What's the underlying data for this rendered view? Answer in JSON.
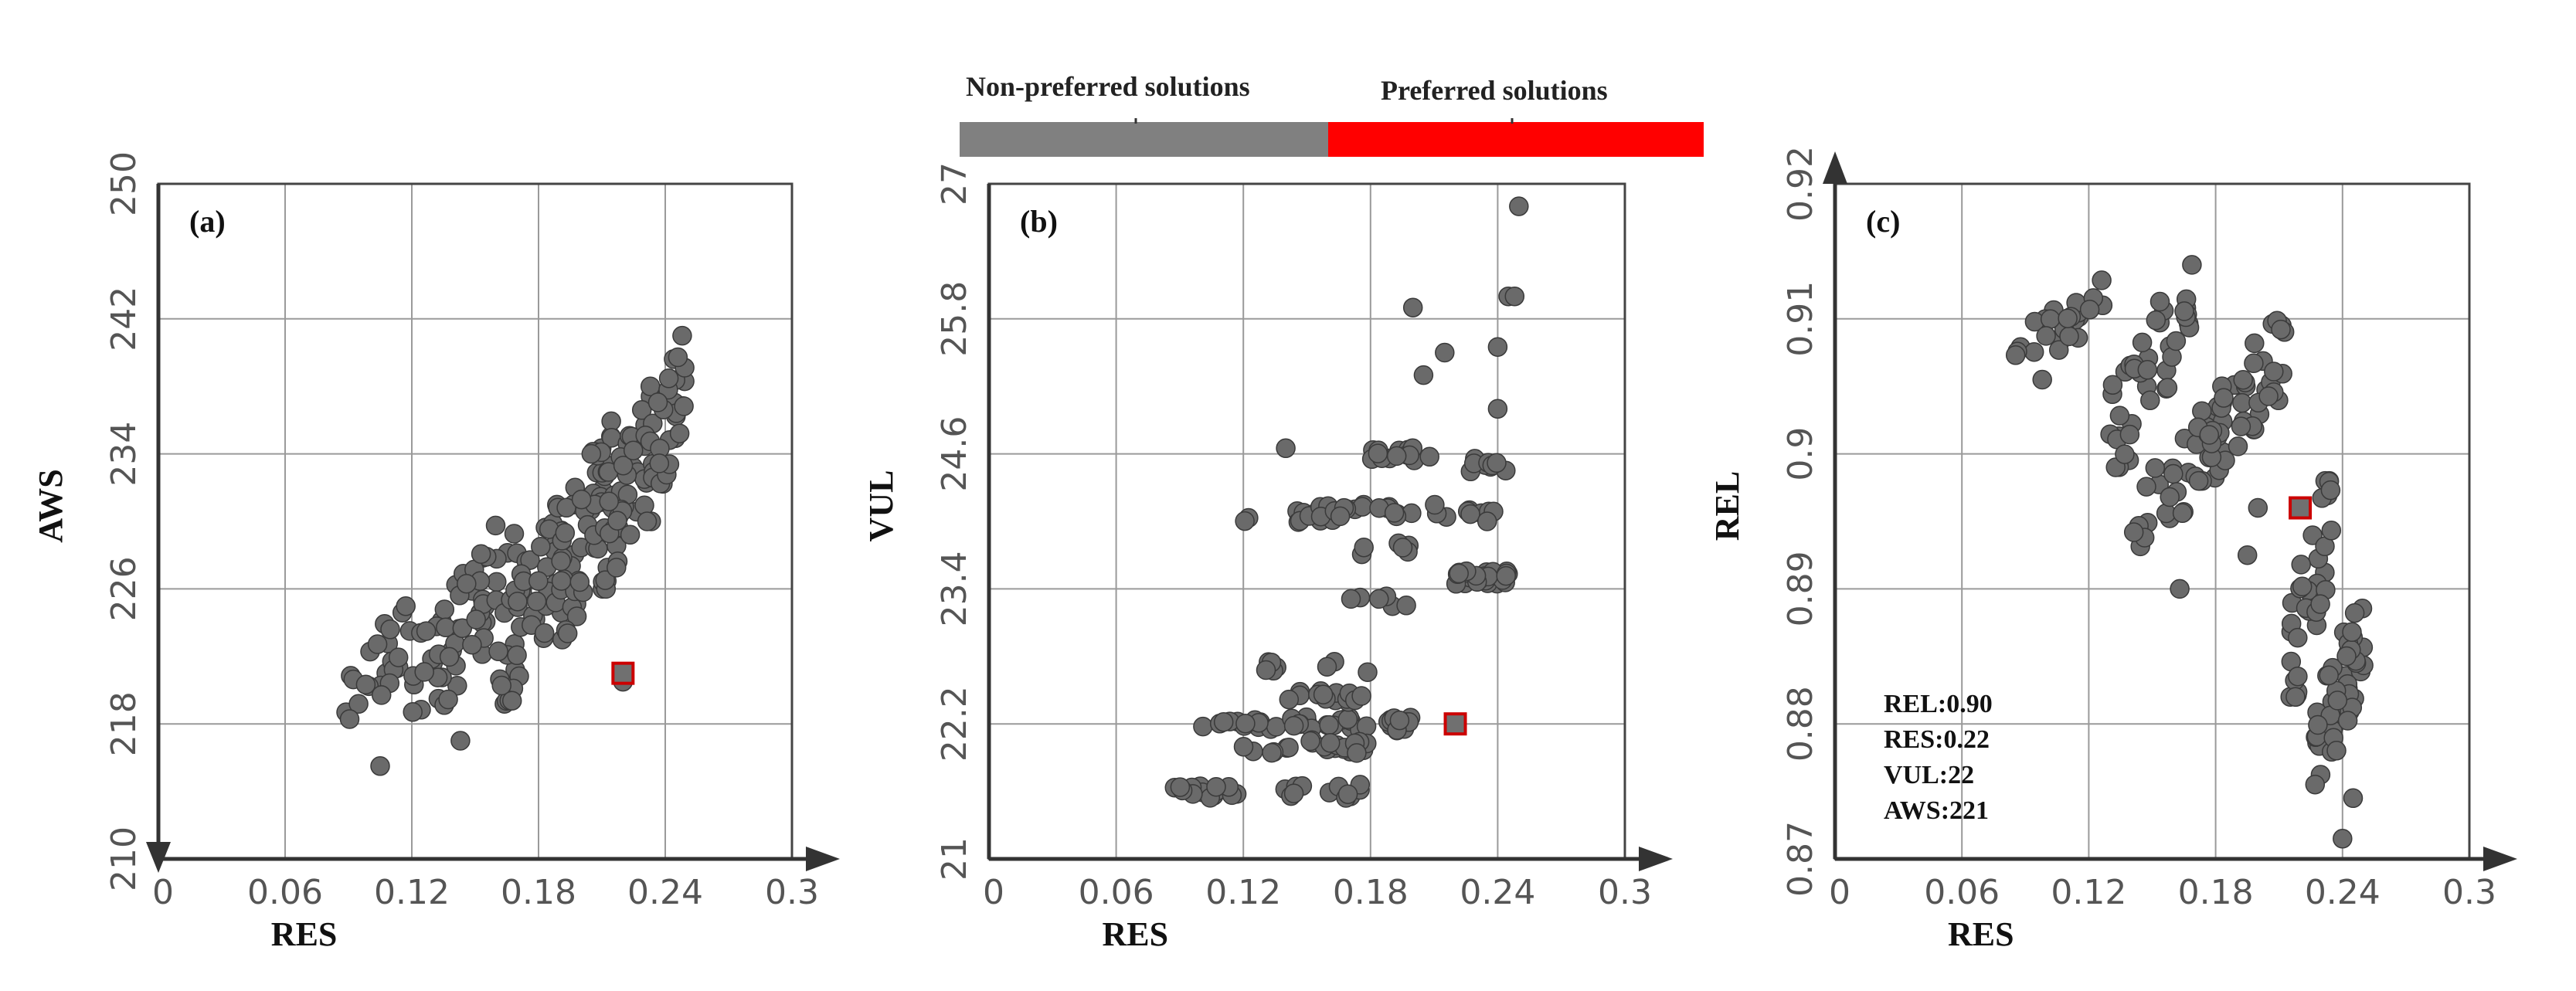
{
  "legend": {
    "items": [
      {
        "label": "Non-preferred solutions",
        "color": "#808080"
      },
      {
        "label": "Preferred solutions",
        "color": "#ff0000"
      }
    ]
  },
  "colors": {
    "point": "#6a6a6a",
    "point_edge": "#3a3a3a",
    "preferred_edge": "#cc0000"
  },
  "chart_data": [
    {
      "type": "scatter",
      "panel_label": "(a)",
      "xlabel": "RES",
      "ylabel": "AWS",
      "xlim": [
        0,
        0.3
      ],
      "ylim": [
        210,
        250
      ],
      "xticks": [
        "0",
        "0.06",
        "0.12",
        "0.18",
        "0.24",
        "0.3"
      ],
      "yticks": [
        "210",
        "218",
        "226",
        "234",
        "242",
        "250"
      ],
      "cloud": [
        {
          "x0": 0.085,
          "x1": 0.12,
          "y0": 217,
          "y1": 225,
          "n": 25
        },
        {
          "x0": 0.12,
          "x1": 0.17,
          "y0": 218,
          "y1": 230,
          "n": 55
        },
        {
          "x0": 0.16,
          "x1": 0.2,
          "y0": 219,
          "y1": 232,
          "n": 60
        },
        {
          "x0": 0.19,
          "x1": 0.215,
          "y0": 223,
          "y1": 236,
          "n": 40
        },
        {
          "x0": 0.21,
          "x1": 0.235,
          "y0": 226,
          "y1": 238,
          "n": 45
        },
        {
          "x0": 0.23,
          "x1": 0.25,
          "y0": 230,
          "y1": 241,
          "n": 30
        }
      ],
      "extra_points": [
        [
          0.105,
          215.5
        ],
        [
          0.143,
          217
        ],
        [
          0.205,
          234
        ],
        [
          0.22,
          220.5
        ],
        [
          0.248,
          241
        ]
      ],
      "preferred": {
        "RES": 0.22,
        "AWS": 221
      }
    },
    {
      "type": "scatter",
      "panel_label": "(b)",
      "xlabel": "RES",
      "ylabel": "VUL",
      "xlim": [
        0,
        0.3
      ],
      "ylim": [
        21,
        27
      ],
      "xticks": [
        "0",
        "0.06",
        "0.12",
        "0.18",
        "0.24",
        "0.3"
      ],
      "yticks": [
        "21",
        "22.2",
        "23.4",
        "24.6",
        "25.8",
        "27"
      ],
      "clusters": [
        {
          "x0": 0.085,
          "x1": 0.12,
          "y": 21.6,
          "n": 14
        },
        {
          "x0": 0.135,
          "x1": 0.18,
          "y": 21.6,
          "n": 12
        },
        {
          "x0": 0.1,
          "x1": 0.2,
          "y": 22.2,
          "n": 45
        },
        {
          "x0": 0.12,
          "x1": 0.18,
          "y": 22.0,
          "n": 25
        },
        {
          "x0": 0.14,
          "x1": 0.2,
          "y": 22.45,
          "n": 15
        },
        {
          "x0": 0.13,
          "x1": 0.185,
          "y": 22.7,
          "n": 8
        },
        {
          "x0": 0.17,
          "x1": 0.2,
          "y": 23.3,
          "n": 6
        },
        {
          "x0": 0.12,
          "x1": 0.17,
          "y": 24.05,
          "n": 10
        },
        {
          "x0": 0.15,
          "x1": 0.24,
          "y": 24.1,
          "n": 30
        },
        {
          "x0": 0.17,
          "x1": 0.2,
          "y": 23.75,
          "n": 6
        },
        {
          "x0": 0.18,
          "x1": 0.21,
          "y": 24.6,
          "n": 14
        },
        {
          "x0": 0.22,
          "x1": 0.245,
          "y": 23.5,
          "n": 30
        },
        {
          "x0": 0.225,
          "x1": 0.245,
          "y": 24.5,
          "n": 10
        }
      ],
      "extra_points": [
        [
          0.2,
          25.9
        ],
        [
          0.205,
          25.3
        ],
        [
          0.215,
          25.5
        ],
        [
          0.24,
          25.0
        ],
        [
          0.245,
          26.0
        ],
        [
          0.25,
          26.8
        ],
        [
          0.248,
          26.0
        ],
        [
          0.24,
          25.55
        ],
        [
          0.235,
          24.0
        ],
        [
          0.14,
          24.65
        ]
      ],
      "preferred": {
        "RES": 0.22,
        "VUL": 22.2
      }
    },
    {
      "type": "scatter",
      "panel_label": "(c)",
      "xlabel": "RES",
      "ylabel": "REL",
      "xlim": [
        0,
        0.3
      ],
      "ylim": [
        0.87,
        0.92
      ],
      "xticks": [
        "0",
        "0.06",
        "0.12",
        "0.18",
        "0.24",
        "0.3"
      ],
      "yticks": [
        "0.87",
        "0.88",
        "0.89",
        "0.9",
        "0.91",
        "0.92"
      ],
      "cloud": [
        {
          "x0": 0.085,
          "x1": 0.13,
          "y0": 0.906,
          "y1": 0.913,
          "n": 25
        },
        {
          "x0": 0.13,
          "x1": 0.17,
          "y0": 0.899,
          "y1": 0.914,
          "n": 40
        },
        {
          "x0": 0.14,
          "x1": 0.185,
          "y0": 0.892,
          "y1": 0.904,
          "n": 30
        },
        {
          "x0": 0.17,
          "x1": 0.215,
          "y0": 0.898,
          "y1": 0.91,
          "n": 45
        },
        {
          "x0": 0.215,
          "x1": 0.235,
          "y0": 0.882,
          "y1": 0.898,
          "n": 35
        },
        {
          "x0": 0.225,
          "x1": 0.25,
          "y0": 0.875,
          "y1": 0.889,
          "n": 45
        }
      ],
      "extra_points": [
        [
          0.163,
          0.89
        ],
        [
          0.195,
          0.8925
        ],
        [
          0.245,
          0.8745
        ],
        [
          0.24,
          0.8715
        ],
        [
          0.098,
          0.9055
        ],
        [
          0.2,
          0.896
        ]
      ],
      "preferred": {
        "RES": 0.22,
        "REL": 0.896
      },
      "annotation": [
        "REL:0.90",
        "RES:0.22",
        "VUL:22",
        "AWS:221"
      ]
    }
  ]
}
